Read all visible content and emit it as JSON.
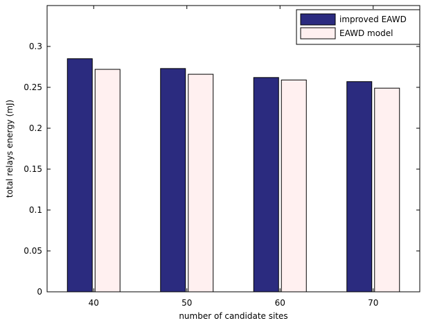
{
  "chart_data": {
    "type": "bar",
    "categories": [
      "40",
      "50",
      "60",
      "70"
    ],
    "series": [
      {
        "name": "improved EAWD",
        "values": [
          0.285,
          0.273,
          0.262,
          0.257
        ],
        "color": "#2b2b7f"
      },
      {
        "name": "EAWD model",
        "values": [
          0.272,
          0.266,
          0.259,
          0.249
        ],
        "color": "#fff0f0"
      }
    ],
    "xlabel": "number of candidate sites",
    "ylabel": "total relays energy (mJ)",
    "ylim": [
      0,
      0.35
    ],
    "yticks": [
      0,
      0.05,
      0.1,
      0.15,
      0.2,
      0.25,
      0.3
    ],
    "ytick_labels": [
      "0",
      "0.05",
      "0.1",
      "0.15",
      "0.2",
      "0.25",
      "0.3"
    ],
    "legend_position": "top-right",
    "grid": false
  }
}
